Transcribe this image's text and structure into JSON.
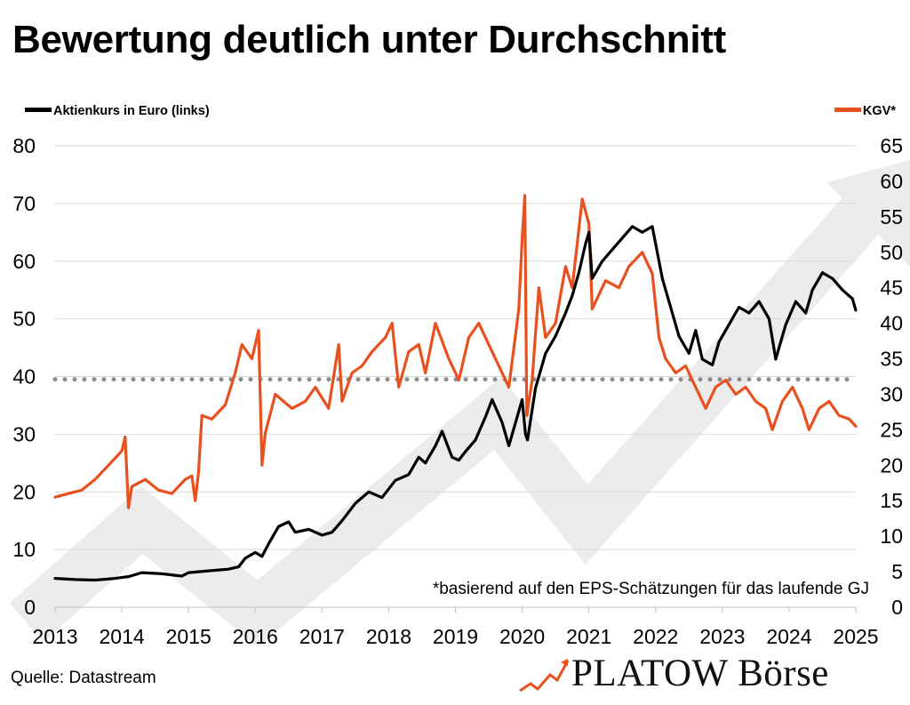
{
  "title": "Bewertung deutlich unter Durchschnitt",
  "legend": {
    "left_label": "Aktienkurs in Euro (links)",
    "right_label": "KGV*"
  },
  "footnote": "*basierend auf den EPS-Schätzungen für das laufende GJ",
  "source": "Quelle: Datastream",
  "brand": "PLATOW Börse",
  "colors": {
    "price": "#000000",
    "kgv": "#e8501e",
    "average": "#8c8c8c",
    "grid": "#d9d9d9"
  },
  "chart_data": {
    "type": "line",
    "x_axis": {
      "ticks": [
        "2013",
        "2014",
        "2015",
        "2016",
        "2017",
        "2018",
        "2019",
        "2020",
        "2021",
        "2022",
        "2023",
        "2024",
        "2025"
      ],
      "range": [
        2013,
        2025
      ]
    },
    "y_left": {
      "ticks": [
        "0",
        "10",
        "20",
        "30",
        "40",
        "50",
        "60",
        "70",
        "80"
      ],
      "range": [
        0,
        80
      ]
    },
    "y_right": {
      "ticks": [
        "0",
        "5",
        "10",
        "15",
        "20",
        "25",
        "30",
        "35",
        "40",
        "45",
        "50",
        "55",
        "60",
        "65"
      ],
      "range": [
        0,
        65
      ]
    },
    "grid": true,
    "series": [
      {
        "name": "Aktienkurs in Euro (links)",
        "axis": "left",
        "points": [
          [
            2013.0,
            5.0
          ],
          [
            2013.3,
            4.8
          ],
          [
            2013.6,
            4.7
          ],
          [
            2013.9,
            5.0
          ],
          [
            2014.1,
            5.3
          ],
          [
            2014.3,
            6.0
          ],
          [
            2014.6,
            5.8
          ],
          [
            2014.9,
            5.4
          ],
          [
            2015.0,
            6.0
          ],
          [
            2015.3,
            6.3
          ],
          [
            2015.6,
            6.6
          ],
          [
            2015.75,
            7.0
          ],
          [
            2015.85,
            8.5
          ],
          [
            2016.0,
            9.5
          ],
          [
            2016.1,
            8.8
          ],
          [
            2016.2,
            11.0
          ],
          [
            2016.35,
            14.0
          ],
          [
            2016.5,
            14.8
          ],
          [
            2016.6,
            13.0
          ],
          [
            2016.8,
            13.5
          ],
          [
            2017.0,
            12.5
          ],
          [
            2017.15,
            13.0
          ],
          [
            2017.3,
            15.0
          ],
          [
            2017.5,
            18.0
          ],
          [
            2017.7,
            20.0
          ],
          [
            2017.9,
            19.0
          ],
          [
            2018.1,
            22.0
          ],
          [
            2018.3,
            23.0
          ],
          [
            2018.45,
            26.0
          ],
          [
            2018.55,
            25.0
          ],
          [
            2018.7,
            28.0
          ],
          [
            2018.8,
            30.5
          ],
          [
            2018.95,
            26.0
          ],
          [
            2019.05,
            25.5
          ],
          [
            2019.15,
            27.0
          ],
          [
            2019.3,
            29.0
          ],
          [
            2019.45,
            33.0
          ],
          [
            2019.55,
            36.0
          ],
          [
            2019.7,
            32.0
          ],
          [
            2019.8,
            28.0
          ],
          [
            2019.9,
            32.0
          ],
          [
            2020.0,
            36.0
          ],
          [
            2020.05,
            30.0
          ],
          [
            2020.08,
            29.0
          ],
          [
            2020.2,
            38.0
          ],
          [
            2020.35,
            44.0
          ],
          [
            2020.5,
            47.0
          ],
          [
            2020.65,
            51.0
          ],
          [
            2020.75,
            54.0
          ],
          [
            2020.85,
            58.0
          ],
          [
            2020.95,
            63.0
          ],
          [
            2021.0,
            65.0
          ],
          [
            2021.05,
            57.0
          ],
          [
            2021.2,
            60.0
          ],
          [
            2021.35,
            62.0
          ],
          [
            2021.5,
            64.0
          ],
          [
            2021.65,
            66.0
          ],
          [
            2021.8,
            65.0
          ],
          [
            2021.95,
            66.0
          ],
          [
            2022.1,
            57.0
          ],
          [
            2022.2,
            53.0
          ],
          [
            2022.35,
            47.0
          ],
          [
            2022.5,
            44.0
          ],
          [
            2022.6,
            48.0
          ],
          [
            2022.7,
            43.0
          ],
          [
            2022.85,
            42.0
          ],
          [
            2022.95,
            46.0
          ],
          [
            2023.1,
            49.0
          ],
          [
            2023.25,
            52.0
          ],
          [
            2023.4,
            51.0
          ],
          [
            2023.55,
            53.0
          ],
          [
            2023.7,
            50.0
          ],
          [
            2023.8,
            43.0
          ],
          [
            2023.95,
            49.0
          ],
          [
            2024.1,
            53.0
          ],
          [
            2024.25,
            51.0
          ],
          [
            2024.35,
            55.0
          ],
          [
            2024.5,
            58.0
          ],
          [
            2024.65,
            57.0
          ],
          [
            2024.8,
            55.0
          ],
          [
            2024.95,
            53.5
          ],
          [
            2025.0,
            51.5
          ]
        ]
      },
      {
        "name": "KGV*",
        "axis": "right",
        "points": [
          [
            2013.0,
            15.5
          ],
          [
            2013.2,
            16.0
          ],
          [
            2013.4,
            16.5
          ],
          [
            2013.6,
            18.0
          ],
          [
            2013.8,
            20.0
          ],
          [
            2014.0,
            22.0
          ],
          [
            2014.05,
            24.0
          ],
          [
            2014.1,
            14.0
          ],
          [
            2014.15,
            17.0
          ],
          [
            2014.35,
            18.0
          ],
          [
            2014.55,
            16.5
          ],
          [
            2014.75,
            16.0
          ],
          [
            2014.95,
            18.0
          ],
          [
            2015.05,
            18.5
          ],
          [
            2015.1,
            15.0
          ],
          [
            2015.15,
            19.0
          ],
          [
            2015.2,
            27.0
          ],
          [
            2015.35,
            26.5
          ],
          [
            2015.55,
            28.5
          ],
          [
            2015.7,
            33.0
          ],
          [
            2015.8,
            37.0
          ],
          [
            2015.95,
            35.0
          ],
          [
            2016.05,
            39.0
          ],
          [
            2016.1,
            20.0
          ],
          [
            2016.15,
            24.5
          ],
          [
            2016.3,
            30.0
          ],
          [
            2016.55,
            28.0
          ],
          [
            2016.75,
            29.0
          ],
          [
            2016.9,
            31.0
          ],
          [
            2017.1,
            28.0
          ],
          [
            2017.25,
            37.0
          ],
          [
            2017.3,
            29.0
          ],
          [
            2017.45,
            33.0
          ],
          [
            2017.6,
            34.0
          ],
          [
            2017.75,
            36.0
          ],
          [
            2017.95,
            38.0
          ],
          [
            2018.05,
            40.0
          ],
          [
            2018.15,
            31.0
          ],
          [
            2018.3,
            36.0
          ],
          [
            2018.45,
            37.0
          ],
          [
            2018.55,
            33.0
          ],
          [
            2018.7,
            40.0
          ],
          [
            2018.9,
            35.0
          ],
          [
            2019.05,
            32.0
          ],
          [
            2019.2,
            38.0
          ],
          [
            2019.35,
            40.0
          ],
          [
            2019.5,
            37.0
          ],
          [
            2019.65,
            34.0
          ],
          [
            2019.8,
            31.0
          ],
          [
            2019.95,
            42.0
          ],
          [
            2020.0,
            52.0
          ],
          [
            2020.04,
            58.0
          ],
          [
            2020.07,
            27.0
          ],
          [
            2020.15,
            32.0
          ],
          [
            2020.25,
            45.0
          ],
          [
            2020.35,
            38.0
          ],
          [
            2020.5,
            40.0
          ],
          [
            2020.65,
            48.0
          ],
          [
            2020.75,
            45.0
          ],
          [
            2020.9,
            57.5
          ],
          [
            2021.0,
            54.0
          ],
          [
            2021.05,
            42.0
          ],
          [
            2021.25,
            46.0
          ],
          [
            2021.45,
            45.0
          ],
          [
            2021.6,
            48.0
          ],
          [
            2021.8,
            50.0
          ],
          [
            2021.95,
            47.0
          ],
          [
            2022.05,
            38.0
          ],
          [
            2022.15,
            35.0
          ],
          [
            2022.3,
            33.0
          ],
          [
            2022.45,
            34.0
          ],
          [
            2022.6,
            31.0
          ],
          [
            2022.75,
            28.0
          ],
          [
            2022.9,
            31.0
          ],
          [
            2023.05,
            32.0
          ],
          [
            2023.2,
            30.0
          ],
          [
            2023.35,
            31.0
          ],
          [
            2023.5,
            29.0
          ],
          [
            2023.65,
            28.0
          ],
          [
            2023.75,
            25.0
          ],
          [
            2023.9,
            29.0
          ],
          [
            2024.05,
            31.0
          ],
          [
            2024.2,
            28.0
          ],
          [
            2024.3,
            25.0
          ],
          [
            2024.45,
            28.0
          ],
          [
            2024.6,
            29.0
          ],
          [
            2024.75,
            27.0
          ],
          [
            2024.9,
            26.5
          ],
          [
            2025.0,
            25.5
          ]
        ]
      },
      {
        "name": "",
        "axis": "left",
        "style": "dotted",
        "points": [
          [
            2013.0,
            39.5
          ],
          [
            2025.0,
            39.5
          ]
        ]
      }
    ]
  }
}
